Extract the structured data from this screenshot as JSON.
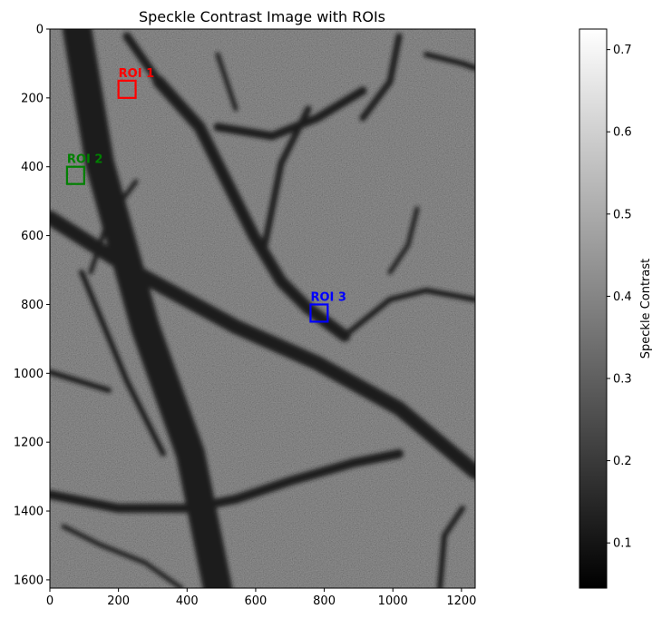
{
  "chart_data": {
    "type": "heatmap",
    "title": "Speckle Contrast Image with ROIs",
    "xlabel": "",
    "ylabel": "",
    "image_width": 1240,
    "image_height": 1624,
    "xlim": [
      0,
      1240
    ],
    "ylim": [
      1624,
      0
    ],
    "x_ticks": [
      0,
      200,
      400,
      600,
      800,
      1000,
      1200
    ],
    "y_ticks": [
      0,
      200,
      400,
      600,
      800,
      1000,
      1200,
      1400,
      1600
    ],
    "colormap": "gray",
    "colorbar": {
      "label": "Speckle Contrast",
      "min": 0.045,
      "max": 0.725,
      "ticks": [
        0.1,
        0.2,
        0.3,
        0.4,
        0.5,
        0.6,
        0.7
      ]
    },
    "rois": [
      {
        "name": "ROI 1",
        "x": 200,
        "y": 150,
        "width": 50,
        "height": 50,
        "color": "#ff0000"
      },
      {
        "name": "ROI 2",
        "x": 50,
        "y": 400,
        "width": 50,
        "height": 50,
        "color": "#008000"
      },
      {
        "name": "ROI 3",
        "x": 760,
        "y": 800,
        "width": 50,
        "height": 50,
        "color": "#0000ff"
      }
    ],
    "grid": false
  }
}
